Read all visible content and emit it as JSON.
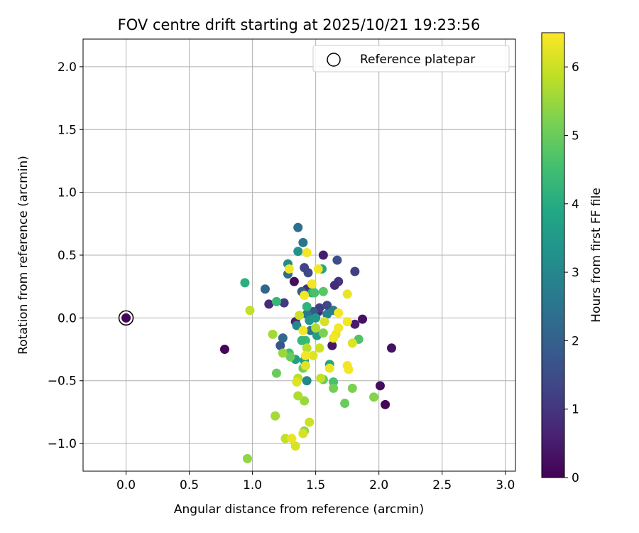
{
  "chart_data": {
    "type": "scatter",
    "title": "FOV centre drift starting at 2025/10/21 19:23:56",
    "xlabel": "Angular distance from reference (arcmin)",
    "ylabel": "Rotation from reference (arcmin)",
    "xlim": [
      -0.34,
      3.08
    ],
    "ylim": [
      -1.22,
      2.22
    ],
    "xticks": [
      0.0,
      0.5,
      1.0,
      1.5,
      2.0,
      2.5,
      3.0
    ],
    "xtick_labels": [
      "0.0",
      "0.5",
      "1.0",
      "1.5",
      "2.0",
      "2.5",
      "3.0"
    ],
    "yticks": [
      -1.0,
      -0.5,
      0.0,
      0.5,
      1.0,
      1.5,
      2.0
    ],
    "ytick_labels": [
      "−1.0",
      "−0.5",
      "0.0",
      "0.5",
      "1.0",
      "1.5",
      "2.0"
    ],
    "grid": true,
    "legend": {
      "position": "top-right",
      "entries": [
        "Reference platepar"
      ]
    },
    "reference_point": {
      "x": 0.0,
      "y": 0.0
    },
    "colorbar": {
      "label": "Hours from first FF file",
      "min": 0,
      "max": 6.5,
      "colormap": "viridis",
      "ticks": [
        0,
        1,
        2,
        3,
        4,
        5,
        6
      ],
      "tick_labels": [
        "0",
        "1",
        "2",
        "3",
        "4",
        "5",
        "6"
      ]
    },
    "points": [
      {
        "x": 0.0,
        "y": 0.0,
        "h": 0.1
      },
      {
        "x": 0.78,
        "y": -0.25,
        "h": 0.1
      },
      {
        "x": 1.33,
        "y": 0.29,
        "h": 0.2
      },
      {
        "x": 1.56,
        "y": 0.5,
        "h": 0.5
      },
      {
        "x": 1.87,
        "y": -0.01,
        "h": 0.3
      },
      {
        "x": 2.1,
        "y": -0.24,
        "h": 0.3
      },
      {
        "x": 2.01,
        "y": -0.54,
        "h": 0.2
      },
      {
        "x": 2.05,
        "y": -0.69,
        "h": 0.1
      },
      {
        "x": 1.63,
        "y": -0.22,
        "h": 0.4
      },
      {
        "x": 1.81,
        "y": -0.05,
        "h": 0.5
      },
      {
        "x": 1.13,
        "y": 0.11,
        "h": 0.8
      },
      {
        "x": 1.52,
        "y": 0.05,
        "h": 0.7
      },
      {
        "x": 1.34,
        "y": -0.03,
        "h": 0.6
      },
      {
        "x": 1.25,
        "y": 0.12,
        "h": 1.1
      },
      {
        "x": 1.81,
        "y": 0.37,
        "h": 1.2
      },
      {
        "x": 1.68,
        "y": 0.29,
        "h": 1.0
      },
      {
        "x": 1.65,
        "y": 0.26,
        "h": 0.8
      },
      {
        "x": 1.43,
        "y": 0.23,
        "h": 0.9
      },
      {
        "x": 1.44,
        "y": 0.36,
        "h": 1.4
      },
      {
        "x": 1.41,
        "y": 0.4,
        "h": 1.3
      },
      {
        "x": 1.53,
        "y": 0.08,
        "h": 1.2
      },
      {
        "x": 1.59,
        "y": 0.1,
        "h": 1.4
      },
      {
        "x": 1.67,
        "y": 0.46,
        "h": 1.6
      },
      {
        "x": 1.22,
        "y": -0.22,
        "h": 1.7
      },
      {
        "x": 1.39,
        "y": 0.21,
        "h": 1.9
      },
      {
        "x": 1.48,
        "y": 0.05,
        "h": 1.8
      },
      {
        "x": 1.1,
        "y": 0.23,
        "h": 2.1
      },
      {
        "x": 1.24,
        "y": -0.16,
        "h": 2.2
      },
      {
        "x": 1.28,
        "y": 0.35,
        "h": 2.3
      },
      {
        "x": 1.36,
        "y": 0.72,
        "h": 2.4
      },
      {
        "x": 1.4,
        "y": 0.6,
        "h": 2.5
      },
      {
        "x": 1.43,
        "y": 0.03,
        "h": 2.6
      },
      {
        "x": 1.46,
        "y": -0.1,
        "h": 2.5
      },
      {
        "x": 1.64,
        "y": 0.06,
        "h": 2.7
      },
      {
        "x": 1.59,
        "y": 0.03,
        "h": 2.8
      },
      {
        "x": 1.35,
        "y": -0.06,
        "h": 3.0
      },
      {
        "x": 1.43,
        "y": -0.5,
        "h": 3.0
      },
      {
        "x": 1.28,
        "y": 0.43,
        "h": 3.1
      },
      {
        "x": 1.36,
        "y": 0.53,
        "h": 3.3
      },
      {
        "x": 1.45,
        "y": -0.02,
        "h": 3.4
      },
      {
        "x": 1.5,
        "y": 0.0,
        "h": 3.5
      },
      {
        "x": 1.34,
        "y": -0.33,
        "h": 3.6
      },
      {
        "x": 1.41,
        "y": -0.34,
        "h": 3.7
      },
      {
        "x": 1.51,
        "y": -0.14,
        "h": 3.6
      },
      {
        "x": 1.61,
        "y": -0.37,
        "h": 3.8
      },
      {
        "x": 1.55,
        "y": 0.39,
        "h": 3.9
      },
      {
        "x": 1.47,
        "y": 0.2,
        "h": 4.0
      },
      {
        "x": 0.94,
        "y": 0.28,
        "h": 4.1
      },
      {
        "x": 1.19,
        "y": 0.13,
        "h": 4.3
      },
      {
        "x": 1.43,
        "y": 0.09,
        "h": 4.2
      },
      {
        "x": 1.42,
        "y": -0.18,
        "h": 4.4
      },
      {
        "x": 1.29,
        "y": -0.28,
        "h": 4.5
      },
      {
        "x": 1.39,
        "y": -0.18,
        "h": 4.3
      },
      {
        "x": 1.64,
        "y": -0.51,
        "h": 4.6
      },
      {
        "x": 1.84,
        "y": -0.17,
        "h": 4.7
      },
      {
        "x": 1.56,
        "y": 0.21,
        "h": 4.8
      },
      {
        "x": 1.49,
        "y": 0.2,
        "h": 4.6
      },
      {
        "x": 1.56,
        "y": -0.49,
        "h": 4.9
      },
      {
        "x": 1.19,
        "y": -0.44,
        "h": 5.0
      },
      {
        "x": 1.3,
        "y": -0.31,
        "h": 5.0
      },
      {
        "x": 1.4,
        "y": -0.4,
        "h": 5.1
      },
      {
        "x": 1.64,
        "y": -0.56,
        "h": 5.1
      },
      {
        "x": 1.73,
        "y": -0.68,
        "h": 5.0
      },
      {
        "x": 1.79,
        "y": -0.56,
        "h": 5.2
      },
      {
        "x": 1.96,
        "y": -0.63,
        "h": 5.3
      },
      {
        "x": 1.56,
        "y": -0.12,
        "h": 5.2
      },
      {
        "x": 0.96,
        "y": -1.12,
        "h": 5.4
      },
      {
        "x": 1.41,
        "y": -0.66,
        "h": 5.5
      },
      {
        "x": 1.41,
        "y": -0.9,
        "h": 5.4
      },
      {
        "x": 1.18,
        "y": -0.78,
        "h": 5.6
      },
      {
        "x": 1.24,
        "y": -0.28,
        "h": 5.5
      },
      {
        "x": 1.16,
        "y": -0.13,
        "h": 5.6
      },
      {
        "x": 1.36,
        "y": -0.62,
        "h": 5.7
      },
      {
        "x": 1.5,
        "y": -0.08,
        "h": 5.7
      },
      {
        "x": 1.36,
        "y": -0.48,
        "h": 5.8
      },
      {
        "x": 1.43,
        "y": -0.24,
        "h": 5.8
      },
      {
        "x": 1.54,
        "y": -0.48,
        "h": 5.9
      },
      {
        "x": 0.98,
        "y": 0.06,
        "h": 5.9
      },
      {
        "x": 1.26,
        "y": -0.96,
        "h": 5.9
      },
      {
        "x": 1.45,
        "y": -0.83,
        "h": 6.0
      },
      {
        "x": 1.53,
        "y": -0.24,
        "h": 6.0
      },
      {
        "x": 1.37,
        "y": 0.02,
        "h": 6.0
      },
      {
        "x": 1.4,
        "y": -0.92,
        "h": 6.1
      },
      {
        "x": 1.34,
        "y": -1.02,
        "h": 6.1
      },
      {
        "x": 1.57,
        "y": -0.03,
        "h": 6.1
      },
      {
        "x": 1.79,
        "y": -0.2,
        "h": 6.2
      },
      {
        "x": 1.35,
        "y": -0.51,
        "h": 6.2
      },
      {
        "x": 1.42,
        "y": -0.38,
        "h": 6.2
      },
      {
        "x": 1.48,
        "y": -0.3,
        "h": 6.2
      },
      {
        "x": 1.31,
        "y": -0.96,
        "h": 6.3
      },
      {
        "x": 1.61,
        "y": -0.4,
        "h": 6.3
      },
      {
        "x": 1.75,
        "y": 0.19,
        "h": 6.3
      },
      {
        "x": 1.66,
        "y": -0.13,
        "h": 6.3
      },
      {
        "x": 1.29,
        "y": 0.39,
        "h": 6.4
      },
      {
        "x": 1.41,
        "y": 0.18,
        "h": 6.4
      },
      {
        "x": 1.43,
        "y": 0.52,
        "h": 6.4
      },
      {
        "x": 1.47,
        "y": 0.27,
        "h": 6.4
      },
      {
        "x": 1.52,
        "y": 0.39,
        "h": 6.4
      },
      {
        "x": 1.4,
        "y": -0.1,
        "h": 6.4
      },
      {
        "x": 1.42,
        "y": -0.3,
        "h": 6.4
      },
      {
        "x": 1.64,
        "y": -0.16,
        "h": 6.4
      },
      {
        "x": 1.68,
        "y": -0.08,
        "h": 6.4
      },
      {
        "x": 1.75,
        "y": -0.38,
        "h": 6.4
      },
      {
        "x": 1.76,
        "y": -0.41,
        "h": 6.4
      },
      {
        "x": 1.68,
        "y": 0.04,
        "h": 6.4
      },
      {
        "x": 1.75,
        "y": -0.03,
        "h": 6.4
      }
    ]
  }
}
